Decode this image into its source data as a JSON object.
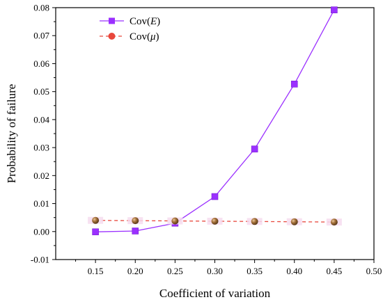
{
  "chart_data": {
    "type": "line",
    "xlabel": "Coefficient of variation",
    "ylabel": "Probability of failure",
    "xlim": [
      0.1,
      0.5
    ],
    "ylim": [
      -0.01,
      0.08
    ],
    "x_ticks": [
      "0.15",
      "0.20",
      "0.25",
      "0.30",
      "0.35",
      "0.40",
      "0.45",
      "0.50"
    ],
    "y_ticks": [
      "-0.01",
      "0.00",
      "0.01",
      "0.02",
      "0.03",
      "0.04",
      "0.05",
      "0.06",
      "0.07",
      "0.08"
    ],
    "grid": false,
    "legend_position": "top-left",
    "series": [
      {
        "name_main": "Cov(",
        "name_var": "E",
        "name_end": ")",
        "marker": "square",
        "line_style": "solid",
        "color": "#9b30ff",
        "x": [
          0.15,
          0.2,
          0.25,
          0.3,
          0.35,
          0.4,
          0.45
        ],
        "values": [
          -0.0001,
          0.0002,
          0.003,
          0.0125,
          0.0295,
          0.0527,
          0.0792
        ]
      },
      {
        "name_main": "Cov(",
        "name_var": "μ",
        "name_end": ")",
        "marker": "sphere",
        "line_style": "dashed",
        "color": "#e8473c",
        "marker_color": "#a8743c",
        "x": [
          0.15,
          0.2,
          0.25,
          0.3,
          0.35,
          0.4,
          0.45
        ],
        "values": [
          0.004,
          0.0039,
          0.0038,
          0.0037,
          0.0036,
          0.0035,
          0.0034
        ]
      }
    ]
  }
}
